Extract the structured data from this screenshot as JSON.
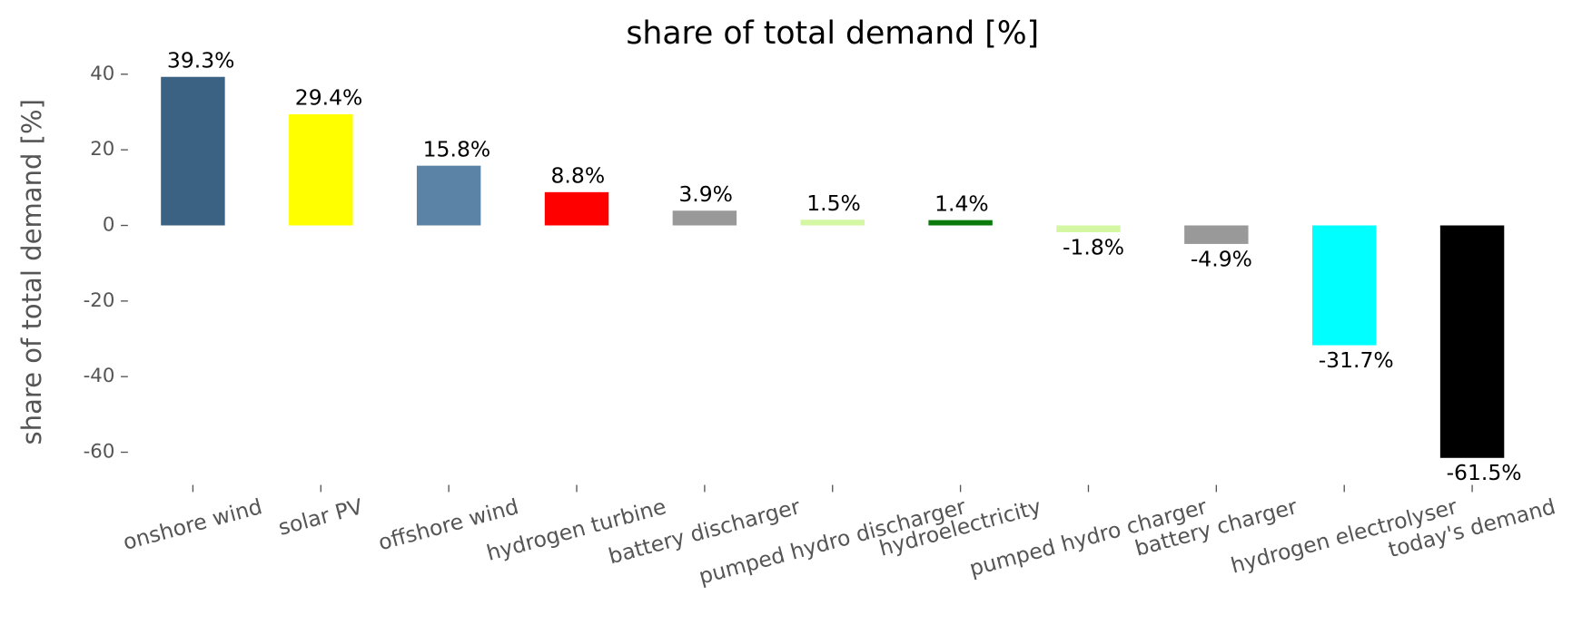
{
  "chart_data": {
    "type": "bar",
    "title": "share of total demand [%]",
    "y_label": "share of total demand [%]",
    "categories": [
      "onshore wind",
      "solar PV",
      "offshore wind",
      "hydrogen turbine",
      "battery discharger",
      "pumped hydro discharger",
      "hydroelectricity",
      "pumped hydro charger",
      "battery charger",
      "hydrogen electrolyser",
      "today's demand"
    ],
    "values": [
      39.3,
      29.4,
      15.8,
      8.8,
      3.9,
      1.5,
      1.4,
      -1.8,
      -4.9,
      -31.7,
      -61.5
    ],
    "value_labels": [
      "39.3%",
      "29.4%",
      "15.8%",
      "8.8%",
      "3.9%",
      "1.5%",
      "1.4%",
      "-1.8%",
      "-4.9%",
      "-31.7%",
      "-61.5%"
    ],
    "colors": [
      "#3b6183",
      "#ffff00",
      "#5b83a5",
      "#ff0000",
      "#999999",
      "#d4f7a3",
      "#0a7a0a",
      "#d4f7a3",
      "#999999",
      "#00ffff",
      "#000000"
    ],
    "ylim": [
      -66.5,
      43.5
    ],
    "yticks": [
      -60,
      -40,
      -20,
      0,
      20,
      40
    ],
    "grid": false
  }
}
